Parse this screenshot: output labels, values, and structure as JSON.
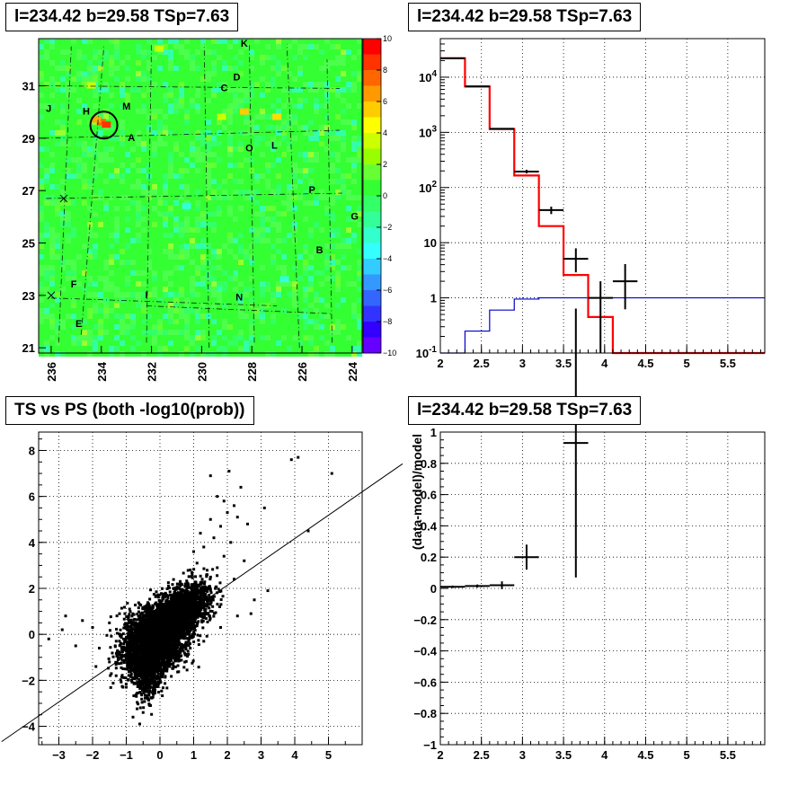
{
  "titles": {
    "skymap": "l=234.42 b=29.58 TSp=7.63",
    "spectrum": "l=234.42 b=29.58 TSp=7.63",
    "scatter": "TS vs PS (both -log10(prob))",
    "residual": "l=234.42 b=29.58 TSp=7.63"
  },
  "chart_data": [
    {
      "id": "skymap",
      "type": "heatmap",
      "title": "l=234.42 b=29.58 TSp=7.63",
      "xlim": [
        236.5,
        223.6
      ],
      "ylim": [
        20.8,
        32.8
      ],
      "x_ticks": [
        236,
        234,
        232,
        230,
        228,
        226,
        224
      ],
      "y_ticks": [
        21,
        23,
        25,
        27,
        29,
        31
      ],
      "colorbar": {
        "range": [
          -10,
          10
        ],
        "ticks": [
          10,
          8,
          6,
          4,
          2,
          0,
          -2,
          -4,
          -6,
          -8,
          -10
        ]
      },
      "source_circle": {
        "l": 233.9,
        "b": 29.5,
        "radius_deg": 0.55
      },
      "labels": [
        {
          "text": "K",
          "l": 228.3,
          "b": 32.5
        },
        {
          "text": "D",
          "l": 228.6,
          "b": 31.2
        },
        {
          "text": "C",
          "l": 229.1,
          "b": 30.8
        },
        {
          "text": "J",
          "l": 236.1,
          "b": 30.0
        },
        {
          "text": "H",
          "l": 234.6,
          "b": 29.9
        },
        {
          "text": "M",
          "l": 233.0,
          "b": 30.1
        },
        {
          "text": "A",
          "l": 232.8,
          "b": 28.9
        },
        {
          "text": "O",
          "l": 228.1,
          "b": 28.5
        },
        {
          "text": "L",
          "l": 227.1,
          "b": 28.6
        },
        {
          "text": "P",
          "l": 225.6,
          "b": 26.9
        },
        {
          "text": "G",
          "l": 223.9,
          "b": 25.9
        },
        {
          "text": "B",
          "l": 225.3,
          "b": 24.6
        },
        {
          "text": "F",
          "l": 235.1,
          "b": 23.3
        },
        {
          "text": "I",
          "l": 232.2,
          "b": 22.9
        },
        {
          "text": "N",
          "l": 228.5,
          "b": 22.8
        },
        {
          "text": "E",
          "l": 234.9,
          "b": 21.8
        }
      ]
    },
    {
      "id": "spectrum",
      "type": "line",
      "title": "l=234.42 b=29.58 TSp=7.63",
      "xlim": [
        2,
        5.95
      ],
      "ylim": [
        0.1,
        50000
      ],
      "log_y": true,
      "grid": true,
      "x_ticks": [
        "2",
        "2.5",
        "3",
        "3.5",
        "4",
        "4.5",
        "5",
        "5.5"
      ],
      "y_ticks": [
        "10^{-1}",
        "1",
        "10",
        "10^{2}",
        "10^{3}",
        "10^{4}"
      ],
      "model_step": {
        "color": "#ff0000",
        "bin_edges": [
          2.0,
          2.3,
          2.6,
          2.9,
          3.2,
          3.5,
          3.8,
          4.1,
          5.95
        ],
        "values": [
          22000,
          6800,
          1150,
          165,
          20,
          2.6,
          0.45,
          0.09
        ]
      },
      "signal_step": {
        "color": "#0000cc",
        "bin_edges": [
          2.0,
          2.3,
          2.6,
          2.9,
          3.2,
          3.5,
          3.8,
          4.1,
          5.95
        ],
        "values": [
          0.09,
          0.25,
          0.6,
          0.95,
          1.0,
          1.0,
          1.0,
          1.0
        ]
      },
      "data_points": [
        {
          "x": 2.15,
          "y": 22000,
          "xerr": 0.15,
          "ylo": 21800,
          "yhi": 22200
        },
        {
          "x": 2.45,
          "y": 6800,
          "xerr": 0.15,
          "ylo": 6700,
          "yhi": 6900
        },
        {
          "x": 2.75,
          "y": 1160,
          "xerr": 0.15,
          "ylo": 1130,
          "yhi": 1190
        },
        {
          "x": 3.05,
          "y": 195,
          "xerr": 0.15,
          "ylo": 180,
          "yhi": 210
        },
        {
          "x": 3.35,
          "y": 39,
          "xerr": 0.15,
          "ylo": 33,
          "yhi": 45
        },
        {
          "x": 3.65,
          "y": 5.1,
          "xerr": 0.15,
          "ylo": 2.9,
          "yhi": 7.9
        },
        {
          "x": 3.95,
          "y": 1.0,
          "xerr": 0.15,
          "ylo": 0.1,
          "yhi": 2.0
        },
        {
          "x": 4.25,
          "y": 2.0,
          "xerr": 0.15,
          "ylo": 0.62,
          "yhi": 4.1
        }
      ]
    },
    {
      "id": "scatter",
      "type": "scatter",
      "title": "TS vs PS (both -log10(prob))",
      "xlim": [
        -3.6,
        6.0
      ],
      "ylim": [
        -4.8,
        8.8
      ],
      "grid": true,
      "x_ticks": [
        "−3",
        "−2",
        "−1",
        "0",
        "1",
        "2",
        "3",
        "4",
        "5"
      ],
      "y_ticks": [
        "−4",
        "−2",
        "0",
        "2",
        "4",
        "6",
        "8"
      ],
      "fit_line": {
        "x": [
          -3.6,
          6.0
        ],
        "y": [
          -3.55,
          6.2
        ]
      },
      "points": [
        [
          3.9,
          7.6
        ],
        [
          4.1,
          7.7
        ],
        [
          5.1,
          7.0
        ],
        [
          2.05,
          7.1
        ],
        [
          1.5,
          6.9
        ],
        [
          2.4,
          6.4
        ],
        [
          1.7,
          6.0
        ],
        [
          1.9,
          5.8
        ],
        [
          2.2,
          5.6
        ],
        [
          3.1,
          5.5
        ],
        [
          2.0,
          5.3
        ],
        [
          2.3,
          5.1
        ],
        [
          4.4,
          4.5
        ],
        [
          2.6,
          4.8
        ],
        [
          1.5,
          5.0
        ],
        [
          1.8,
          4.7
        ],
        [
          1.2,
          4.4
        ],
        [
          1.6,
          4.2
        ],
        [
          2.1,
          4.0
        ],
        [
          1.3,
          3.8
        ],
        [
          1.0,
          3.6
        ],
        [
          1.9,
          3.4
        ],
        [
          2.5,
          3.2
        ],
        [
          1.1,
          3.1
        ],
        [
          1.7,
          2.9
        ],
        [
          0.9,
          2.8
        ],
        [
          1.4,
          2.6
        ],
        [
          2.2,
          2.4
        ],
        [
          3.2,
          1.9
        ],
        [
          2.8,
          1.5
        ],
        [
          2.7,
          0.9
        ],
        [
          -2.3,
          0.6
        ],
        [
          -2.8,
          0.8
        ],
        [
          -3.3,
          -0.2
        ],
        [
          -2.9,
          0.2
        ],
        [
          -2.0,
          0.3
        ],
        [
          -1.8,
          -0.6
        ],
        [
          -1.5,
          0.5
        ],
        [
          -1.2,
          0.9
        ],
        [
          -0.9,
          1.1
        ],
        [
          -0.6,
          1.3
        ],
        [
          0.4,
          2.0
        ],
        [
          0.6,
          2.3
        ],
        [
          0.8,
          2.1
        ],
        [
          1.0,
          1.8
        ],
        [
          1.2,
          1.6
        ],
        [
          1.5,
          1.3
        ],
        [
          0.2,
          1.7
        ],
        [
          -0.2,
          1.2
        ],
        [
          -0.5,
          -3.4
        ],
        [
          -0.8,
          -3.6
        ],
        [
          -0.3,
          -3.1
        ],
        [
          -0.7,
          -2.7
        ],
        [
          -1.0,
          -2.3
        ],
        [
          -0.2,
          -2.6
        ],
        [
          -1.3,
          -1.8
        ],
        [
          -1.5,
          -1.2
        ],
        [
          -0.4,
          -2.0
        ],
        [
          0.3,
          -1.1
        ],
        [
          0.5,
          -0.8
        ],
        [
          0.9,
          -0.6
        ],
        [
          1.3,
          -0.3
        ],
        [
          1.8,
          0.3
        ],
        [
          2.3,
          0.8
        ],
        [
          -1.9,
          -1.4
        ],
        [
          -0.6,
          -3.9
        ],
        [
          -2.5,
          -0.5
        ]
      ],
      "clusters": [
        {
          "x": -0.2,
          "y": -0.3,
          "sx": 0.45,
          "sy": 0.7,
          "rho": 0.25,
          "n": 3200
        },
        {
          "x": 0.55,
          "y": 0.9,
          "sx": 0.45,
          "sy": 0.65,
          "rho": 0.55,
          "n": 1900
        },
        {
          "x": -0.35,
          "y": -1.6,
          "sx": 0.2,
          "sy": 0.6,
          "rho": 0.0,
          "n": 500
        }
      ]
    },
    {
      "id": "residual",
      "type": "scatter",
      "title": "l=234.42 b=29.58 TSp=7.63",
      "xlim": [
        2,
        5.95
      ],
      "ylim": [
        -1,
        1
      ],
      "grid": true,
      "ylabel": "(data-model)/model",
      "x_ticks": [
        "2",
        "2.5",
        "3",
        "3.5",
        "4",
        "4.5",
        "5",
        "5.5"
      ],
      "y_ticks": [
        "−1",
        "−0.8",
        "−0.6",
        "−0.4",
        "−0.2",
        "0",
        "0.2",
        "0.4",
        "0.6",
        "0.8",
        "1"
      ],
      "data_points": [
        {
          "x": 2.15,
          "y": 0.01,
          "xerr": 0.15,
          "yerr": 0.008
        },
        {
          "x": 2.45,
          "y": 0.015,
          "xerr": 0.15,
          "yerr": 0.01
        },
        {
          "x": 2.75,
          "y": 0.02,
          "xerr": 0.15,
          "yerr": 0.025
        },
        {
          "x": 3.05,
          "y": 0.2,
          "xerr": 0.15,
          "yerr": 0.08
        },
        {
          "x": 3.65,
          "y": 0.93,
          "xerr": 0.15,
          "yerr": 0.86
        }
      ]
    }
  ]
}
